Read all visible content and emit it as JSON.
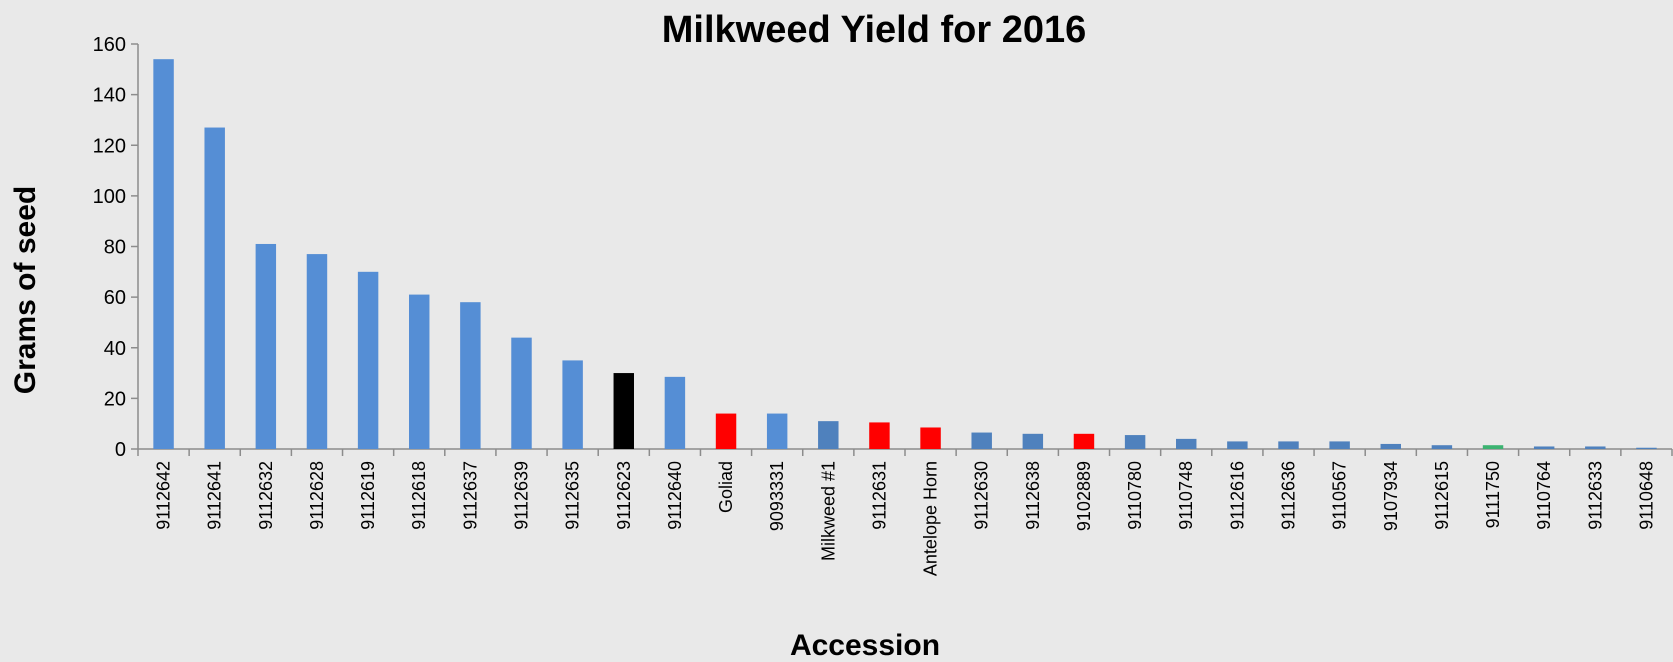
{
  "chart_data": {
    "type": "bar",
    "title": "Milkweed Yield for 2016",
    "xlabel": "Accession",
    "ylabel": "Grams of seed",
    "ylim": [
      0,
      160
    ],
    "yticks": [
      "0",
      "20",
      "40",
      "60",
      "80",
      "100",
      "120",
      "140",
      "160"
    ],
    "grid": false,
    "categories": [
      "9112642",
      "9112641",
      "9112632",
      "9112628",
      "9112619",
      "9112618",
      "9112637",
      "9112639",
      "9112635",
      "9112623",
      "9112640",
      "Goliad",
      "9093331",
      "Milkweed #1",
      "9112631",
      "Antelope Horn",
      "9112630",
      "9112638",
      "9102889",
      "9110780",
      "9110748",
      "9112616",
      "9112636",
      "9110567",
      "9107934",
      "9112615",
      "9111750",
      "9110764",
      "9112633",
      "9110648"
    ],
    "values": [
      154,
      127,
      81,
      77,
      70,
      61,
      58,
      44,
      35,
      30,
      28.5,
      14,
      14,
      11,
      10.5,
      8.5,
      6.5,
      6,
      6,
      5.5,
      4,
      3,
      3,
      3,
      2,
      1.5,
      1.5,
      1,
      1,
      0.5
    ],
    "colors": [
      "#558ed5",
      "#558ed5",
      "#558ed5",
      "#558ed5",
      "#558ed5",
      "#558ed5",
      "#558ed5",
      "#558ed5",
      "#558ed5",
      "#000000",
      "#558ed5",
      "#ff0000",
      "#558ed5",
      "#4f81bd",
      "#ff0000",
      "#ff0000",
      "#4f81bd",
      "#4f81bd",
      "#ff0000",
      "#4f81bd",
      "#4f81bd",
      "#4f81bd",
      "#4f81bd",
      "#4f81bd",
      "#4f81bd",
      "#4f81bd",
      "#3cb371",
      "#4f81bd",
      "#4f81bd",
      "#4f81bd"
    ]
  }
}
